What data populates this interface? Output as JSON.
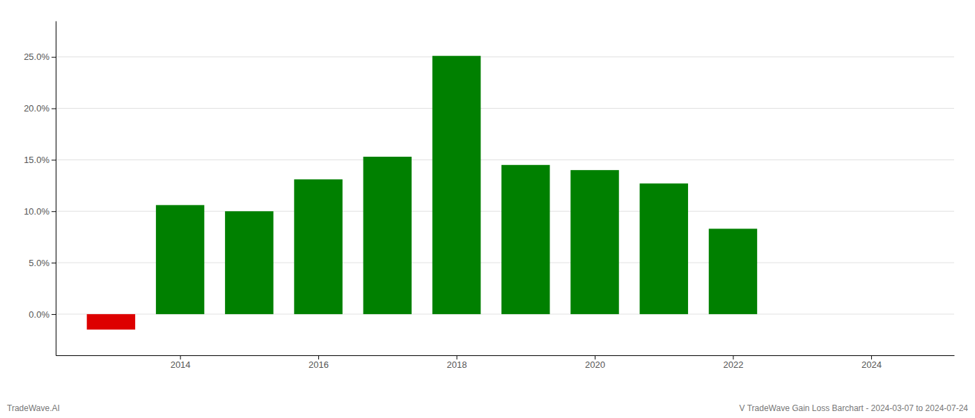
{
  "chart_data": {
    "type": "bar",
    "title": "V TradeWave Gain Loss Barchart - 2024-03-07 to 2024-07-24",
    "annotations": [
      "TradeWave.AI"
    ],
    "x": [
      2013,
      2014,
      2015,
      2016,
      2017,
      2018,
      2019,
      2020,
      2021,
      2022
    ],
    "values": [
      -0.015,
      0.106,
      0.1,
      0.131,
      0.153,
      0.251,
      0.145,
      0.14,
      0.127,
      0.083
    ],
    "colors": [
      "#dd0000",
      "#008000",
      "#008000",
      "#008000",
      "#008000",
      "#008000",
      "#008000",
      "#008000",
      "#008000",
      "#008000"
    ],
    "xlim": [
      2012.2,
      2025.2
    ],
    "xticks": [
      2014,
      2016,
      2018,
      2020,
      2022,
      2024
    ],
    "ylim": [
      -0.04,
      0.285
    ],
    "yticks": [
      {
        "value": 0.0,
        "label": "0.0%"
      },
      {
        "value": 0.05,
        "label": "5.0%"
      },
      {
        "value": 0.1,
        "label": "10.0%"
      },
      {
        "value": 0.15,
        "label": "15.0%"
      },
      {
        "value": 0.2,
        "label": "20.0%"
      },
      {
        "value": 0.25,
        "label": "25.0%"
      }
    ],
    "grid": true
  }
}
